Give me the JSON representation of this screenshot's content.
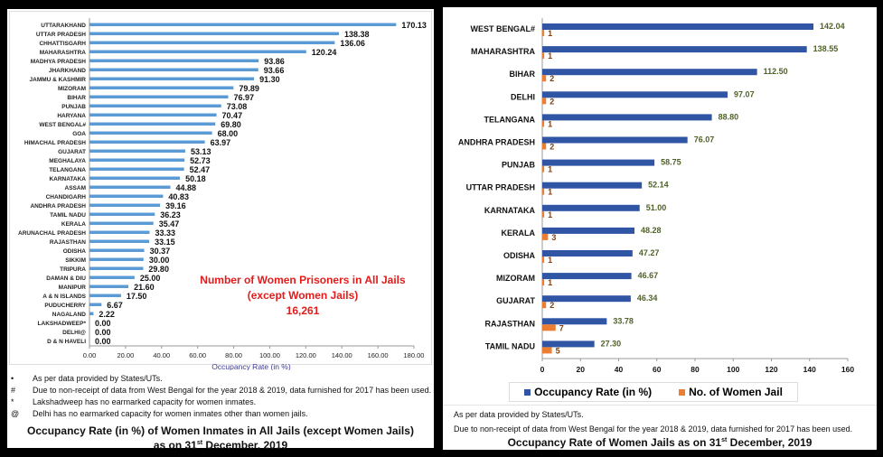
{
  "chart_data": [
    {
      "type": "bar",
      "orientation": "horizontal",
      "title": "Occupancy Rate (in %) of Women Inmates in All Jails (except Women Jails)",
      "subtitle_parts": [
        "as on 31",
        "st",
        " December, 2019"
      ],
      "xlabel": "Occupancy Rate (in %)",
      "xlim": [
        0,
        180
      ],
      "xticks": [
        "0.00",
        "20.00",
        "40.00",
        "60.00",
        "80.00",
        "100.00",
        "120.00",
        "140.00",
        "160.00",
        "180.00"
      ],
      "bar_color": "#5b9bd5",
      "categories": [
        "UTTARAKHAND",
        "UTTAR PRADESH",
        "CHHATTISGARH",
        "MAHARASHTRA",
        "MADHYA PRADESH",
        "JHARKHAND",
        "JAMMU & KASHMIR",
        "MIZORAM",
        "BIHAR",
        "PUNJAB",
        "HARYANA",
        "WEST BENGAL#",
        "GOA",
        "HIMACHAL PRADESH",
        "GUJARAT",
        "MEGHALAYA",
        "TELANGANA",
        "KARNATAKA",
        "ASSAM",
        "CHANDIGARH",
        "ANDHRA PRADESH",
        "TAMIL NADU",
        "KERALA",
        "ARUNACHAL PRADESH",
        "RAJASTHAN",
        "ODISHA",
        "SIKKIM",
        "TRIPURA",
        "DAMAN & DIU",
        "MANIPUR",
        "A & N ISLANDS",
        "PUDUCHERRY",
        "NAGALAND",
        "LAKSHADWEEP*",
        "DELHI@",
        "D & N HAVELI"
      ],
      "values": [
        170.13,
        138.38,
        136.06,
        120.24,
        93.86,
        93.66,
        91.3,
        79.89,
        76.97,
        73.08,
        70.47,
        69.8,
        68.0,
        63.97,
        53.13,
        52.73,
        52.47,
        50.18,
        44.88,
        40.83,
        39.16,
        36.23,
        35.47,
        33.33,
        33.15,
        30.37,
        30.0,
        29.8,
        25.0,
        21.6,
        17.5,
        6.67,
        2.22,
        0.0,
        0.0,
        0.0
      ],
      "labels": [
        "170.13",
        "138.38",
        "136.06",
        "120.24",
        "93.86",
        "93.66",
        "91.30",
        "79.89",
        "76.97",
        "73.08",
        "70.47",
        "69.80",
        "68.00",
        "63.97",
        "53.13",
        "52.73",
        "52.47",
        "50.18",
        "44.88",
        "40.83",
        "39.16",
        "36.23",
        "35.47",
        "33.33",
        "33.15",
        "30.37",
        "30.00",
        "29.80",
        "25.00",
        "21.60",
        "17.50",
        "6.67",
        "2.22",
        "0.00",
        "0.00",
        "0.00"
      ],
      "annotation": [
        "Number of Women Prisoners in All Jails",
        "(except Women Jails)",
        "16,261"
      ],
      "footnotes": [
        [
          "•",
          "As per data provided by States/UTs."
        ],
        [
          "#",
          "Due to non-receipt of data from West Bengal for the year 2018 & 2019, data furnished for 2017 has been used."
        ],
        [
          "*",
          "Lakshadweep has no earmarked capacity for women inmates."
        ],
        [
          "@",
          "Delhi has no earmarked capacity for women inmates other than women jails."
        ]
      ]
    },
    {
      "type": "bar",
      "orientation": "horizontal",
      "title_parts": [
        "Occupancy Rate of Women Jails as on 31",
        "st",
        " December, 2019"
      ],
      "xlim": [
        0,
        160
      ],
      "xticks": [
        "0",
        "20",
        "40",
        "60",
        "80",
        "100",
        "120",
        "140",
        "160"
      ],
      "categories": [
        "WEST BENGAL#",
        "MAHARASHTRA",
        "BIHAR",
        "DELHI",
        "TELANGANA",
        "ANDHRA PRADESH",
        "PUNJAB",
        "UTTAR PRADESH",
        "KARNATAKA",
        "KERALA",
        "ODISHA",
        "MIZORAM",
        "GUJARAT",
        "RAJASTHAN",
        "TAMIL NADU"
      ],
      "series": [
        {
          "name": "Occupancy Rate (in %)",
          "color": "#2f55a4",
          "label_color": "#4f6228",
          "values": [
            142.04,
            138.55,
            112.5,
            97.07,
            88.8,
            76.07,
            58.75,
            52.14,
            51.0,
            48.28,
            47.27,
            46.67,
            46.34,
            33.78,
            27.3
          ],
          "labels": [
            "142.04",
            "138.55",
            "112.50",
            "97.07",
            "88.80",
            "76.07",
            "58.75",
            "52.14",
            "51.00",
            "48.28",
            "47.27",
            "46.67",
            "46.34",
            "33.78",
            "27.30"
          ]
        },
        {
          "name": "No. of Women Jail",
          "color": "#ed7d31",
          "label_color": "#7f3f10",
          "values": [
            1,
            1,
            2,
            2,
            1,
            2,
            1,
            1,
            1,
            3,
            1,
            1,
            2,
            7,
            5
          ],
          "labels": [
            "1",
            "1",
            "2",
            "2",
            "1",
            "2",
            "1",
            "1",
            "1",
            "3",
            "1",
            "1",
            "2",
            "7",
            "5"
          ]
        }
      ],
      "legend_position": "bottom",
      "footnotes": [
        "As per data provided by States/UTs.",
        "Due to non-receipt of data from West Bengal for the year 2018 & 2019, data furnished for 2017 has been used."
      ]
    }
  ]
}
